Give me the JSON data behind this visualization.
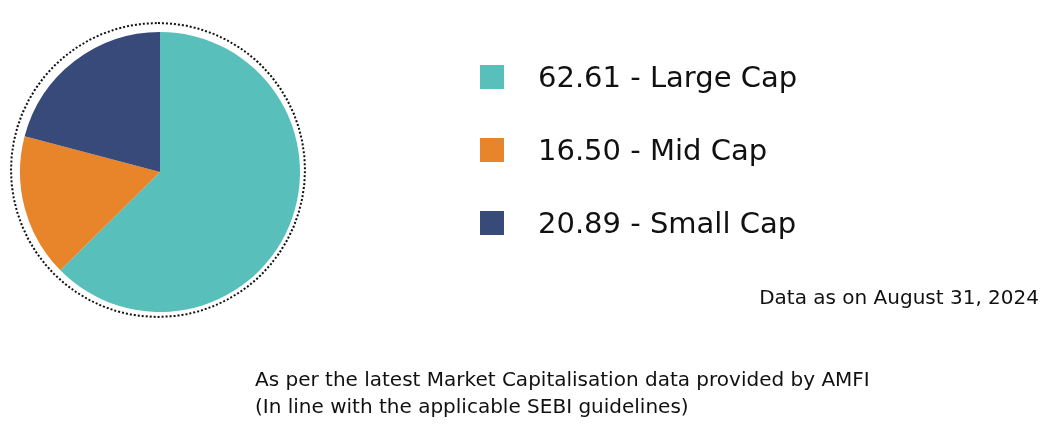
{
  "chart_data": {
    "type": "pie",
    "categories": [
      "Large Cap",
      "Mid Cap",
      "Small Cap"
    ],
    "values": [
      62.61,
      16.5,
      20.89
    ],
    "value_labels": [
      "62.61",
      "16.50",
      "20.89"
    ],
    "colors": [
      "#58bfbb",
      "#e8852b",
      "#374a7a"
    ],
    "legend": "right",
    "annotations": [
      "Data as on August 31, 2024",
      "As per the latest Market Capitalisation data provided by AMFI",
      "(In line with the applicable SEBI guidelines)"
    ]
  }
}
